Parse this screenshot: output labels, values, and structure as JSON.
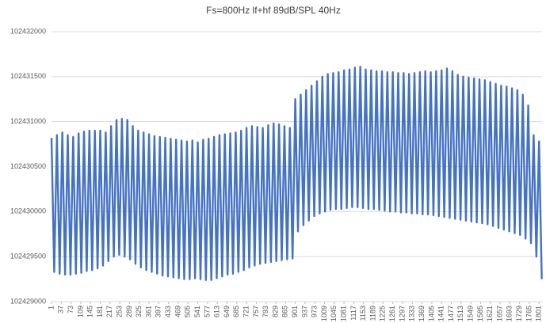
{
  "chart_data": {
    "type": "line",
    "title": "Fs=800Hz lf+hf 89dB/SPL 40Hz",
    "color": "#4472c4",
    "grid": true,
    "xlim": [
      1,
      1812
    ],
    "xticks": [
      1,
      37,
      73,
      109,
      145,
      181,
      217,
      253,
      289,
      325,
      361,
      397,
      433,
      469,
      505,
      541,
      577,
      613,
      649,
      685,
      721,
      757,
      793,
      829,
      865,
      901,
      937,
      973,
      1009,
      1045,
      1081,
      1117,
      1153,
      1189,
      1225,
      1261,
      1297,
      1333,
      1369,
      1405,
      1441,
      1477,
      1513,
      1549,
      1585,
      1621,
      1657,
      1693,
      1729,
      1765,
      1801
    ],
    "ylim": [
      102429000,
      102432000
    ],
    "yticks": [
      102429000,
      102429500,
      102430000,
      102430500,
      102431000,
      102431500,
      102432000
    ],
    "x": [
      1,
      11,
      21,
      31,
      41,
      51,
      61,
      71,
      81,
      91,
      101,
      111,
      121,
      131,
      141,
      151,
      161,
      171,
      181,
      191,
      201,
      211,
      221,
      231,
      241,
      251,
      261,
      271,
      281,
      291,
      301,
      311,
      321,
      331,
      341,
      351,
      361,
      371,
      381,
      391,
      401,
      411,
      421,
      431,
      441,
      451,
      461,
      471,
      481,
      491,
      501,
      511,
      521,
      531,
      541,
      551,
      561,
      571,
      581,
      591,
      601,
      611,
      621,
      631,
      641,
      651,
      661,
      671,
      681,
      691,
      701,
      711,
      721,
      731,
      741,
      751,
      761,
      771,
      781,
      791,
      801,
      811,
      821,
      831,
      841,
      851,
      861,
      871,
      881,
      891,
      901,
      911,
      921,
      931,
      941,
      951,
      961,
      971,
      981,
      991,
      1001,
      1011,
      1021,
      1031,
      1041,
      1051,
      1061,
      1071,
      1081,
      1091,
      1101,
      1111,
      1121,
      1131,
      1141,
      1151,
      1161,
      1171,
      1181,
      1191,
      1201,
      1211,
      1221,
      1231,
      1241,
      1251,
      1261,
      1271,
      1281,
      1291,
      1301,
      1311,
      1321,
      1331,
      1341,
      1351,
      1361,
      1371,
      1381,
      1391,
      1401,
      1411,
      1421,
      1431,
      1441,
      1451,
      1461,
      1471,
      1481,
      1491,
      1501,
      1511,
      1521,
      1531,
      1541,
      1551,
      1561,
      1571,
      1581,
      1591,
      1601,
      1611,
      1621,
      1631,
      1641,
      1651,
      1661,
      1671,
      1681,
      1691,
      1701,
      1711,
      1721,
      1731,
      1741,
      1751,
      1761,
      1771,
      1781,
      1791,
      1801,
      1811
    ],
    "series": [
      {
        "color": "#4472c4",
        "values": [
          102430820,
          102429330,
          102430850,
          102429310,
          102430880,
          102429300,
          102430850,
          102429300,
          102430830,
          102429310,
          102430870,
          102429320,
          102430890,
          102429340,
          102430900,
          102429350,
          102430900,
          102429370,
          102430900,
          102429400,
          102430880,
          102429450,
          102430950,
          102429500,
          102431020,
          102429520,
          102431030,
          102429500,
          102431020,
          102429470,
          102430950,
          102429420,
          102430900,
          102429380,
          102430880,
          102429350,
          102430860,
          102429330,
          102430840,
          102429310,
          102430830,
          102429290,
          102430820,
          102429280,
          102430810,
          102429270,
          102430800,
          102429260,
          102430790,
          102429250,
          102430780,
          102429250,
          102430790,
          102429260,
          102430770,
          102429250,
          102430800,
          102429240,
          102430810,
          102429240,
          102430830,
          102429260,
          102430850,
          102429280,
          102430860,
          102429300,
          102430870,
          102429310,
          102430880,
          102429330,
          102430900,
          102429350,
          102430930,
          102429380,
          102430950,
          102429400,
          102430940,
          102429420,
          102430930,
          102429430,
          102430960,
          102429440,
          102430980,
          102429450,
          102430970,
          102429460,
          102430950,
          102429470,
          102430930,
          102429480,
          102431250,
          102429780,
          102431300,
          102429850,
          102431350,
          102429900,
          102431400,
          102429950,
          102431450,
          102429980,
          102431500,
          102430000,
          102431530,
          102430020,
          102431540,
          102430030,
          102431550,
          102430030,
          102431570,
          102430040,
          102431580,
          102430050,
          102431600,
          102430050,
          102431610,
          102430040,
          102431580,
          102430030,
          102431570,
          102430030,
          102431560,
          102430020,
          102431560,
          102430010,
          102431550,
          102430000,
          102431550,
          102430000,
          102431540,
          102429990,
          102431540,
          102429990,
          102431530,
          102429980,
          102431540,
          102429980,
          102431550,
          102429970,
          102431560,
          102429970,
          102431550,
          102429960,
          102431560,
          102429950,
          102431570,
          102429940,
          102431590,
          102429930,
          102431560,
          102429920,
          102431520,
          102429910,
          102431500,
          102429900,
          102431490,
          102429890,
          102431480,
          102429880,
          102431470,
          102429870,
          102431460,
          102429860,
          102431440,
          102429840,
          102431420,
          102429820,
          102431400,
          102429800,
          102431390,
          102429780,
          102431370,
          102429760,
          102431350,
          102429740,
          102431300,
          102429700,
          102431180,
          102429650,
          102430850,
          102429500,
          102430780,
          102429250
        ]
      }
    ]
  }
}
